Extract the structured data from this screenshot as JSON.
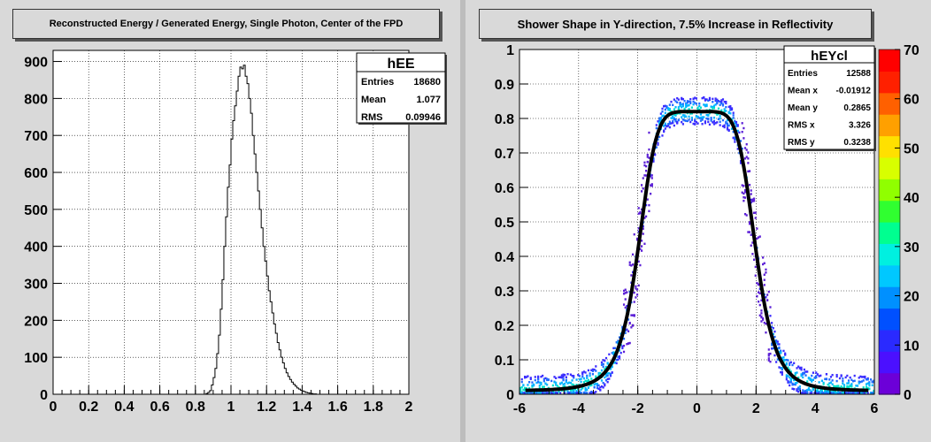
{
  "left": {
    "title": "Reconstructed Energy / Generated Energy, Single Photon, Center of the FPD",
    "stats": {
      "name": "hEE",
      "rows": [
        {
          "label": "Entries",
          "value": "18680"
        },
        {
          "label": "Mean",
          "value": "1.077"
        },
        {
          "label": "RMS",
          "value": "0.09946"
        }
      ]
    }
  },
  "right": {
    "title": "Shower Shape in Y-direction, 7.5% Increase in Reflectivity",
    "stats": {
      "name": "hEYcl",
      "rows": [
        {
          "label": "Entries",
          "value": "12588"
        },
        {
          "label": "Mean x",
          "value": "-0.01912"
        },
        {
          "label": "Mean y",
          "value": "0.2865"
        },
        {
          "label": "RMS x",
          "value": "3.326"
        },
        {
          "label": "RMS y",
          "value": "0.3238"
        }
      ]
    },
    "colorbar": {
      "ticks": [
        "0",
        "10",
        "20",
        "30",
        "40",
        "50",
        "60",
        "70"
      ]
    }
  },
  "chart_data": [
    {
      "type": "bar",
      "title": "Reconstructed Energy / Generated Energy, Single Photon, Center of the FPD",
      "xlim": [
        0,
        2
      ],
      "ylim": [
        0,
        930
      ],
      "xticks": [
        "0",
        "0.2",
        "0.4",
        "0.6",
        "0.8",
        "1",
        "1.2",
        "1.4",
        "1.6",
        "1.8",
        "2"
      ],
      "yticks": [
        "0",
        "100",
        "200",
        "300",
        "400",
        "500",
        "600",
        "700",
        "800",
        "900"
      ],
      "grid": true,
      "legend_position": "top-right",
      "bin_edges_start": 0.86,
      "bin_width": 0.01,
      "values": [
        2,
        5,
        10,
        25,
        45,
        70,
        110,
        160,
        230,
        310,
        400,
        480,
        560,
        620,
        690,
        740,
        780,
        820,
        860,
        885,
        880,
        890,
        860,
        840,
        800,
        760,
        700,
        650,
        600,
        550,
        500,
        450,
        400,
        360,
        320,
        280,
        250,
        220,
        190,
        165,
        140,
        120,
        100,
        85,
        70,
        58,
        48,
        40,
        33,
        27,
        22,
        17,
        14,
        11,
        9,
        7,
        5,
        4,
        3,
        2,
        1,
        1
      ]
    },
    {
      "type": "heatmap",
      "title": "Shower Shape in Y-direction, 7.5% Increase in Reflectivity",
      "xlim": [
        -6,
        6
      ],
      "ylim": [
        0,
        1
      ],
      "zlim": [
        0,
        70
      ],
      "xticks": [
        "-6",
        "-4",
        "-2",
        "0",
        "2",
        "4",
        "6"
      ],
      "yticks": [
        "0",
        "0.1",
        "0.2",
        "0.3",
        "0.4",
        "0.5",
        "0.6",
        "0.7",
        "0.8",
        "0.9",
        "1"
      ],
      "grid": true,
      "colorbar_range": [
        0,
        70
      ],
      "overlay_curve": "symmetric profile peaking near 0.81 at x=0, falling to ~0.4 at |x|=2 and near 0.01 beyond |x|=5"
    }
  ]
}
